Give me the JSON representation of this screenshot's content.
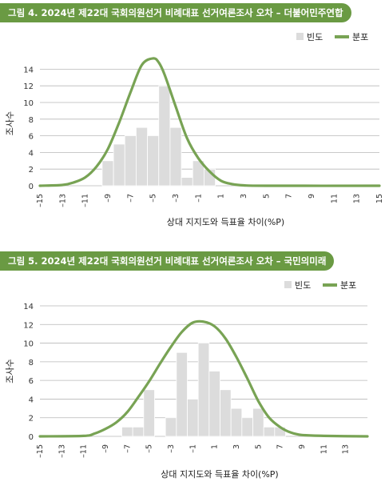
{
  "figures": [
    {
      "title": "그림 4. 2024년 제22대 국회의원선거 비례대표 선거여론조사 오차 – 더불어민주연합"
    },
    {
      "title": "그림 5. 2024년 제22대 국회의원선거 비례대표 선거여론조사 오차 – 국민의미래"
    }
  ],
  "colors": {
    "title_bg": "#6a9a43",
    "bar": "#dcdcdc",
    "line": "#78a354",
    "grid": "#b8b8b8"
  },
  "chart_data": [
    {
      "type": "bar+line",
      "xlabel": "상대 지지도와 득표율 차이(%P)",
      "ylabel": "조사수",
      "xticks": [
        "–15",
        "–13",
        "–11",
        "–9",
        "–7",
        "–5",
        "–3",
        "–1",
        "1",
        "3",
        "5",
        "7",
        "9",
        "11",
        "13",
        "15"
      ],
      "xlim": [
        -15,
        15
      ],
      "ylim": [
        0,
        15
      ],
      "yticks": [
        0,
        2,
        4,
        6,
        8,
        10,
        12,
        14
      ],
      "legend": [
        "빈도",
        "분포"
      ],
      "legend_position": "top-right",
      "grid": true,
      "bars": [
        {
          "x": -9,
          "y": 3
        },
        {
          "x": -8,
          "y": 5
        },
        {
          "x": -7,
          "y": 6
        },
        {
          "x": -6,
          "y": 7
        },
        {
          "x": -5,
          "y": 6
        },
        {
          "x": -4,
          "y": 12
        },
        {
          "x": -3,
          "y": 7
        },
        {
          "x": -2,
          "y": 1
        },
        {
          "x": -1,
          "y": 3
        },
        {
          "x": 0,
          "y": 2
        }
      ],
      "curve": [
        {
          "x": -15,
          "y": 0
        },
        {
          "x": -13,
          "y": 0.1
        },
        {
          "x": -12,
          "y": 0.4
        },
        {
          "x": -11,
          "y": 1.0
        },
        {
          "x": -10,
          "y": 2.3
        },
        {
          "x": -9,
          "y": 4.4
        },
        {
          "x": -8,
          "y": 7.6
        },
        {
          "x": -7,
          "y": 11.2
        },
        {
          "x": -6,
          "y": 14.5
        },
        {
          "x": -5,
          "y": 15.3
        },
        {
          "x": -4.5,
          "y": 14.8
        },
        {
          "x": -4,
          "y": 13.4
        },
        {
          "x": -3,
          "y": 9.5
        },
        {
          "x": -2,
          "y": 5.7
        },
        {
          "x": -1,
          "y": 3.3
        },
        {
          "x": 0,
          "y": 1.7
        },
        {
          "x": 1,
          "y": 0.6
        },
        {
          "x": 2,
          "y": 0.2
        },
        {
          "x": 3,
          "y": 0.05
        },
        {
          "x": 5,
          "y": 0
        },
        {
          "x": 15,
          "y": 0
        }
      ]
    },
    {
      "type": "bar+line",
      "xlabel": "상대 지지도와 득표율 차이(%P)",
      "ylabel": "조사수",
      "xticks": [
        "–15",
        "–13",
        "–11",
        "–9",
        "–7",
        "–5",
        "–3",
        "–1",
        "1",
        "3",
        "5",
        "7",
        "9",
        "11",
        "13"
      ],
      "xlim": [
        -15,
        15
      ],
      "ylim": [
        0,
        14
      ],
      "yticks": [
        0,
        2,
        4,
        6,
        8,
        10,
        12,
        14
      ],
      "legend": [
        "빈도",
        "분포"
      ],
      "legend_position": "top-right",
      "grid": true,
      "bars": [
        {
          "x": -7,
          "y": 1
        },
        {
          "x": -6,
          "y": 1
        },
        {
          "x": -5,
          "y": 5
        },
        {
          "x": -3,
          "y": 2
        },
        {
          "x": -2,
          "y": 9
        },
        {
          "x": -1,
          "y": 4
        },
        {
          "x": 0,
          "y": 10
        },
        {
          "x": 1,
          "y": 7
        },
        {
          "x": 2,
          "y": 5
        },
        {
          "x": 3,
          "y": 3
        },
        {
          "x": 4,
          "y": 2
        },
        {
          "x": 5,
          "y": 3
        },
        {
          "x": 6,
          "y": 1
        },
        {
          "x": 7,
          "y": 1
        }
      ],
      "curve": [
        {
          "x": -15,
          "y": 0
        },
        {
          "x": -11,
          "y": 0.05
        },
        {
          "x": -10,
          "y": 0.3
        },
        {
          "x": -9,
          "y": 0.8
        },
        {
          "x": -8,
          "y": 1.5
        },
        {
          "x": -7,
          "y": 2.6
        },
        {
          "x": -6,
          "y": 4.2
        },
        {
          "x": -5,
          "y": 5.9
        },
        {
          "x": -4,
          "y": 7.8
        },
        {
          "x": -3,
          "y": 9.6
        },
        {
          "x": -2,
          "y": 11.2
        },
        {
          "x": -1,
          "y": 12.2
        },
        {
          "x": 0,
          "y": 12.3
        },
        {
          "x": 1,
          "y": 11.8
        },
        {
          "x": 2,
          "y": 10.5
        },
        {
          "x": 3,
          "y": 8.5
        },
        {
          "x": 4,
          "y": 6.2
        },
        {
          "x": 5,
          "y": 3.8
        },
        {
          "x": 6,
          "y": 2.0
        },
        {
          "x": 7,
          "y": 1.0
        },
        {
          "x": 8,
          "y": 0.4
        },
        {
          "x": 9,
          "y": 0.15
        },
        {
          "x": 11,
          "y": 0.05
        },
        {
          "x": 15,
          "y": 0
        }
      ]
    }
  ]
}
